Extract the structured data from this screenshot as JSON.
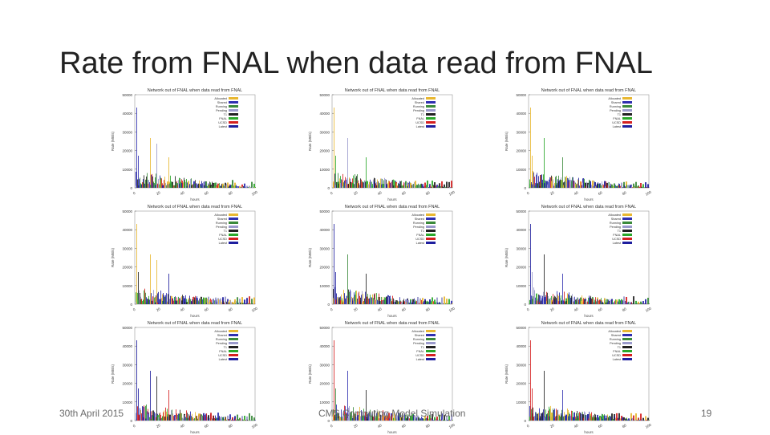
{
  "slide": {
    "title": "Rate from FNAL when data read from FNAL"
  },
  "footer": {
    "date": "30th April 2015",
    "center": "CMS Computing Model Simulation",
    "page": "19"
  },
  "colors": {
    "bar_colors": [
      "#e8b730",
      "#2f2fb0",
      "#3a8a3a",
      "#9a9acc",
      "#222222",
      "#2aa82a",
      "#d52020",
      "#1e1e9e"
    ]
  },
  "chart_panel": {
    "title": "Network out of FNAL when data read from FNAL",
    "ylabel": "Rate (MB/s)",
    "xlabel": "hours",
    "yticks": [
      "50000",
      "40000",
      "30000",
      "20000",
      "10000",
      "0"
    ],
    "xticks": [
      "0",
      "20",
      "40",
      "60",
      "80",
      "100"
    ],
    "legend": [
      "Allocated",
      "Shared",
      "Running",
      "Pending",
      "T1",
      "FNAL",
      "UCSD",
      "Latest"
    ]
  },
  "panels": [
    {
      "id": "p1"
    },
    {
      "id": "p2"
    },
    {
      "id": "p3"
    },
    {
      "id": "p4"
    },
    {
      "id": "p5"
    },
    {
      "id": "p6"
    },
    {
      "id": "p7"
    },
    {
      "id": "p8"
    },
    {
      "id": "p9"
    }
  ]
}
